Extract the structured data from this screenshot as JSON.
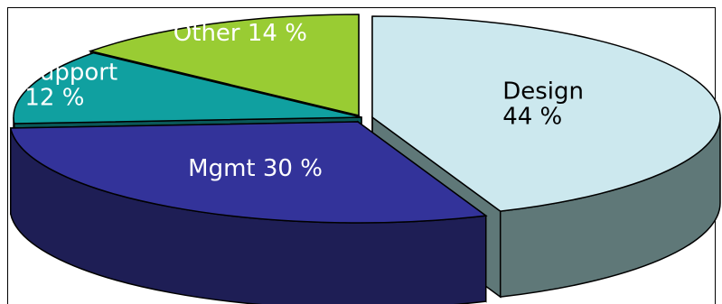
{
  "chart_data": {
    "type": "pie",
    "style": "3d-exploded",
    "title": "",
    "legend": "none",
    "slices": [
      {
        "name": "Design",
        "value": 44,
        "label_line1": "Design",
        "label_line2": "44 %",
        "color": "#cce8ee",
        "side_color": "#5f7878",
        "label_color": "#000000"
      },
      {
        "name": "Mgmt",
        "value": 30,
        "label_line1": "Mgmt 30 %",
        "label_line2": "",
        "color": "#33339a",
        "side_color": "#1e1e55",
        "label_color": "#ffffff"
      },
      {
        "name": "Support",
        "value": 12,
        "label_line1": "Support",
        "label_line2": "12 %",
        "color": "#10a0a0",
        "side_color": "#0a5858",
        "label_color": "#ffffff"
      },
      {
        "name": "Other",
        "value": 14,
        "label_line1": "Other 14 %",
        "label_line2": "",
        "color": "#99cc33",
        "side_color": "#4d6619",
        "label_color": "#ffffff"
      }
    ]
  }
}
